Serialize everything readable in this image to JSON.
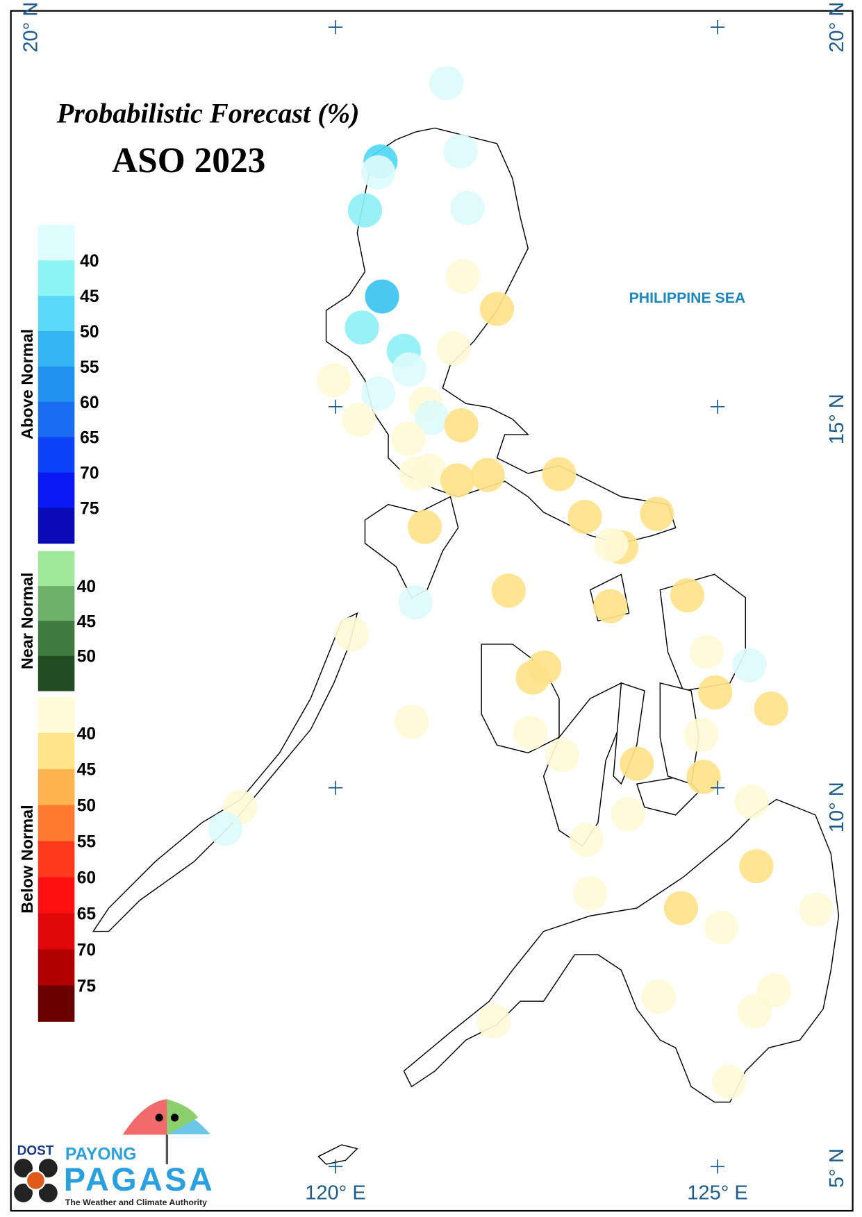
{
  "title": "Probabilistic Forecast (%)",
  "subtitle": "ASO 2023",
  "sea_label": "PHILIPPINE SEA",
  "legend": [
    {
      "name": "Above Normal",
      "ticks": [
        40,
        45,
        50,
        55,
        60,
        65,
        70,
        75
      ],
      "colors": [
        "#defefe",
        "#8ef5f7",
        "#5ad9f8",
        "#35b6f3",
        "#2192ef",
        "#1a6cf2",
        "#0c42f7",
        "#0a18f3",
        "#0a0ab8"
      ]
    },
    {
      "name": "Near Normal",
      "ticks": [
        40,
        45,
        50
      ],
      "colors": [
        "#a0e89a",
        "#6db06a",
        "#3f7a3e",
        "#224d22"
      ]
    },
    {
      "name": "Below Normal",
      "ticks": [
        40,
        45,
        50,
        55,
        60,
        65,
        70,
        75
      ],
      "colors": [
        "#fffbd9",
        "#ffe48a",
        "#ffb450",
        "#ff7a2e",
        "#ff3a1c",
        "#ff1010",
        "#e00808",
        "#b00000",
        "#6a0000"
      ]
    }
  ],
  "latitude_labels": [
    "20° N",
    "15° N",
    "10° N",
    "5° N"
  ],
  "longitude_labels": [
    "120° E",
    "125° E"
  ],
  "logo": {
    "agency": "DOST",
    "brand_top": "PAYONG",
    "brand": "PAGASA",
    "tagline": "The Weather and Climate Authority"
  }
}
